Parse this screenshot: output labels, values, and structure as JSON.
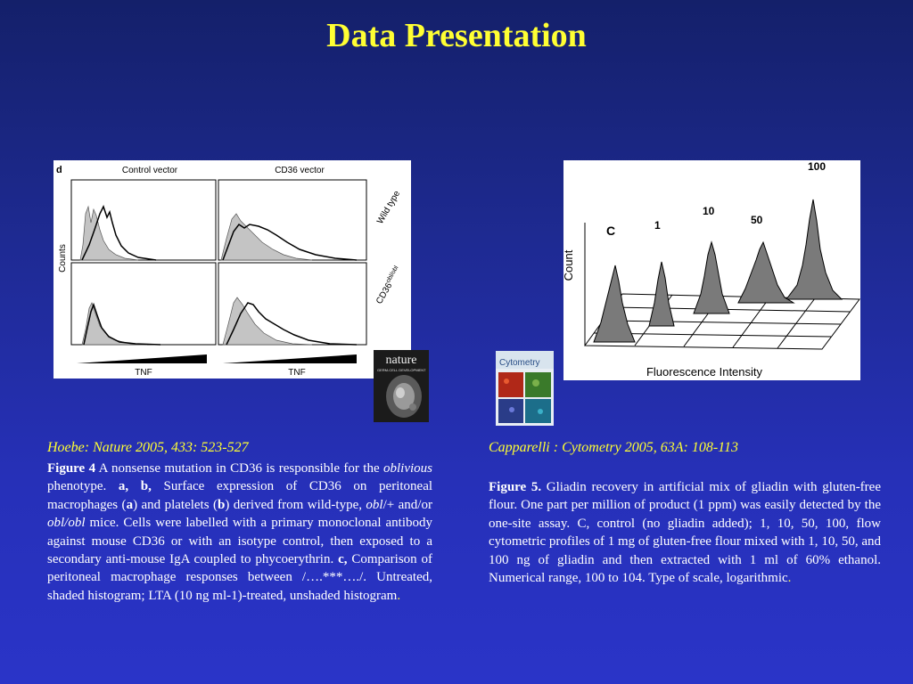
{
  "slide": {
    "title": "Data Presentation"
  },
  "left_figure": {
    "panel_letter": "d",
    "col1": "Control vector",
    "col2": "CD36 vector",
    "row1": "Wild type",
    "row2": "CD36",
    "row2_sup": "obl/obl",
    "y_label": "Counts",
    "x_label_left": "TNF",
    "x_label_right": "TNF"
  },
  "nature_cover": {
    "masthead": "nature",
    "cover_line": "GERM-CELL DEVELOPMENT"
  },
  "cytometry_cover": {
    "masthead": "Cytometry"
  },
  "right_figure": {
    "y_label": "Count",
    "x_label": "Fluorescence Intensity",
    "peak_labels": [
      "C",
      "1",
      "10",
      "50",
      "100"
    ]
  },
  "left_caption": {
    "citation": "Hoebe: Nature 2005, 433: 523-527",
    "fig_label": "Figure 4",
    "t1": " A nonsense mutation in CD36 is responsible for the ",
    "oblivious": "oblivious",
    "t2": " phenotype. ",
    "ab": "a, b,",
    "t3": " Surface expression of CD36 on peritoneal macrophages (",
    "a": "a",
    "t4": ") and platelets (",
    "b": "b",
    "t5": ") derived from wild-type, ",
    "obl_plus": "obl",
    "t6": "/+ and/or ",
    "obl_obl": "obl/obl",
    "t7": " mice. Cells were labelled with a primary monoclonal antibody against mouse CD36 or with an isotype control, then exposed to a secondary anti-mouse IgA coupled to phycoerythrin. ",
    "c": "c,",
    "t8": " Comparison of peritoneal macrophage responses between /….***…./. Untreated, shaded histogram; LTA (10 ng ml-1)-treated, unshaded histogram",
    "end": "."
  },
  "right_caption": {
    "citation": "Capparelli : Cytometry 2005, 63A: 108-113",
    "fig_label": "Figure 5.",
    "t1": " Gliadin recovery in artificial mix of gliadin with gluten-free flour. One part per million of product (1 ppm) was easily detected by the one-site assay. C, control (no gliadin added); 1, 10, 50, 100, flow cytometric profiles of 1 mg of gluten-free flour mixed with 1, 10, 50, and 100 ng of gliadin and then extracted with 1 ml of 60% ethanol. Numerical range, 100 to 104. Type of scale, logarithmic",
    "end": "."
  }
}
